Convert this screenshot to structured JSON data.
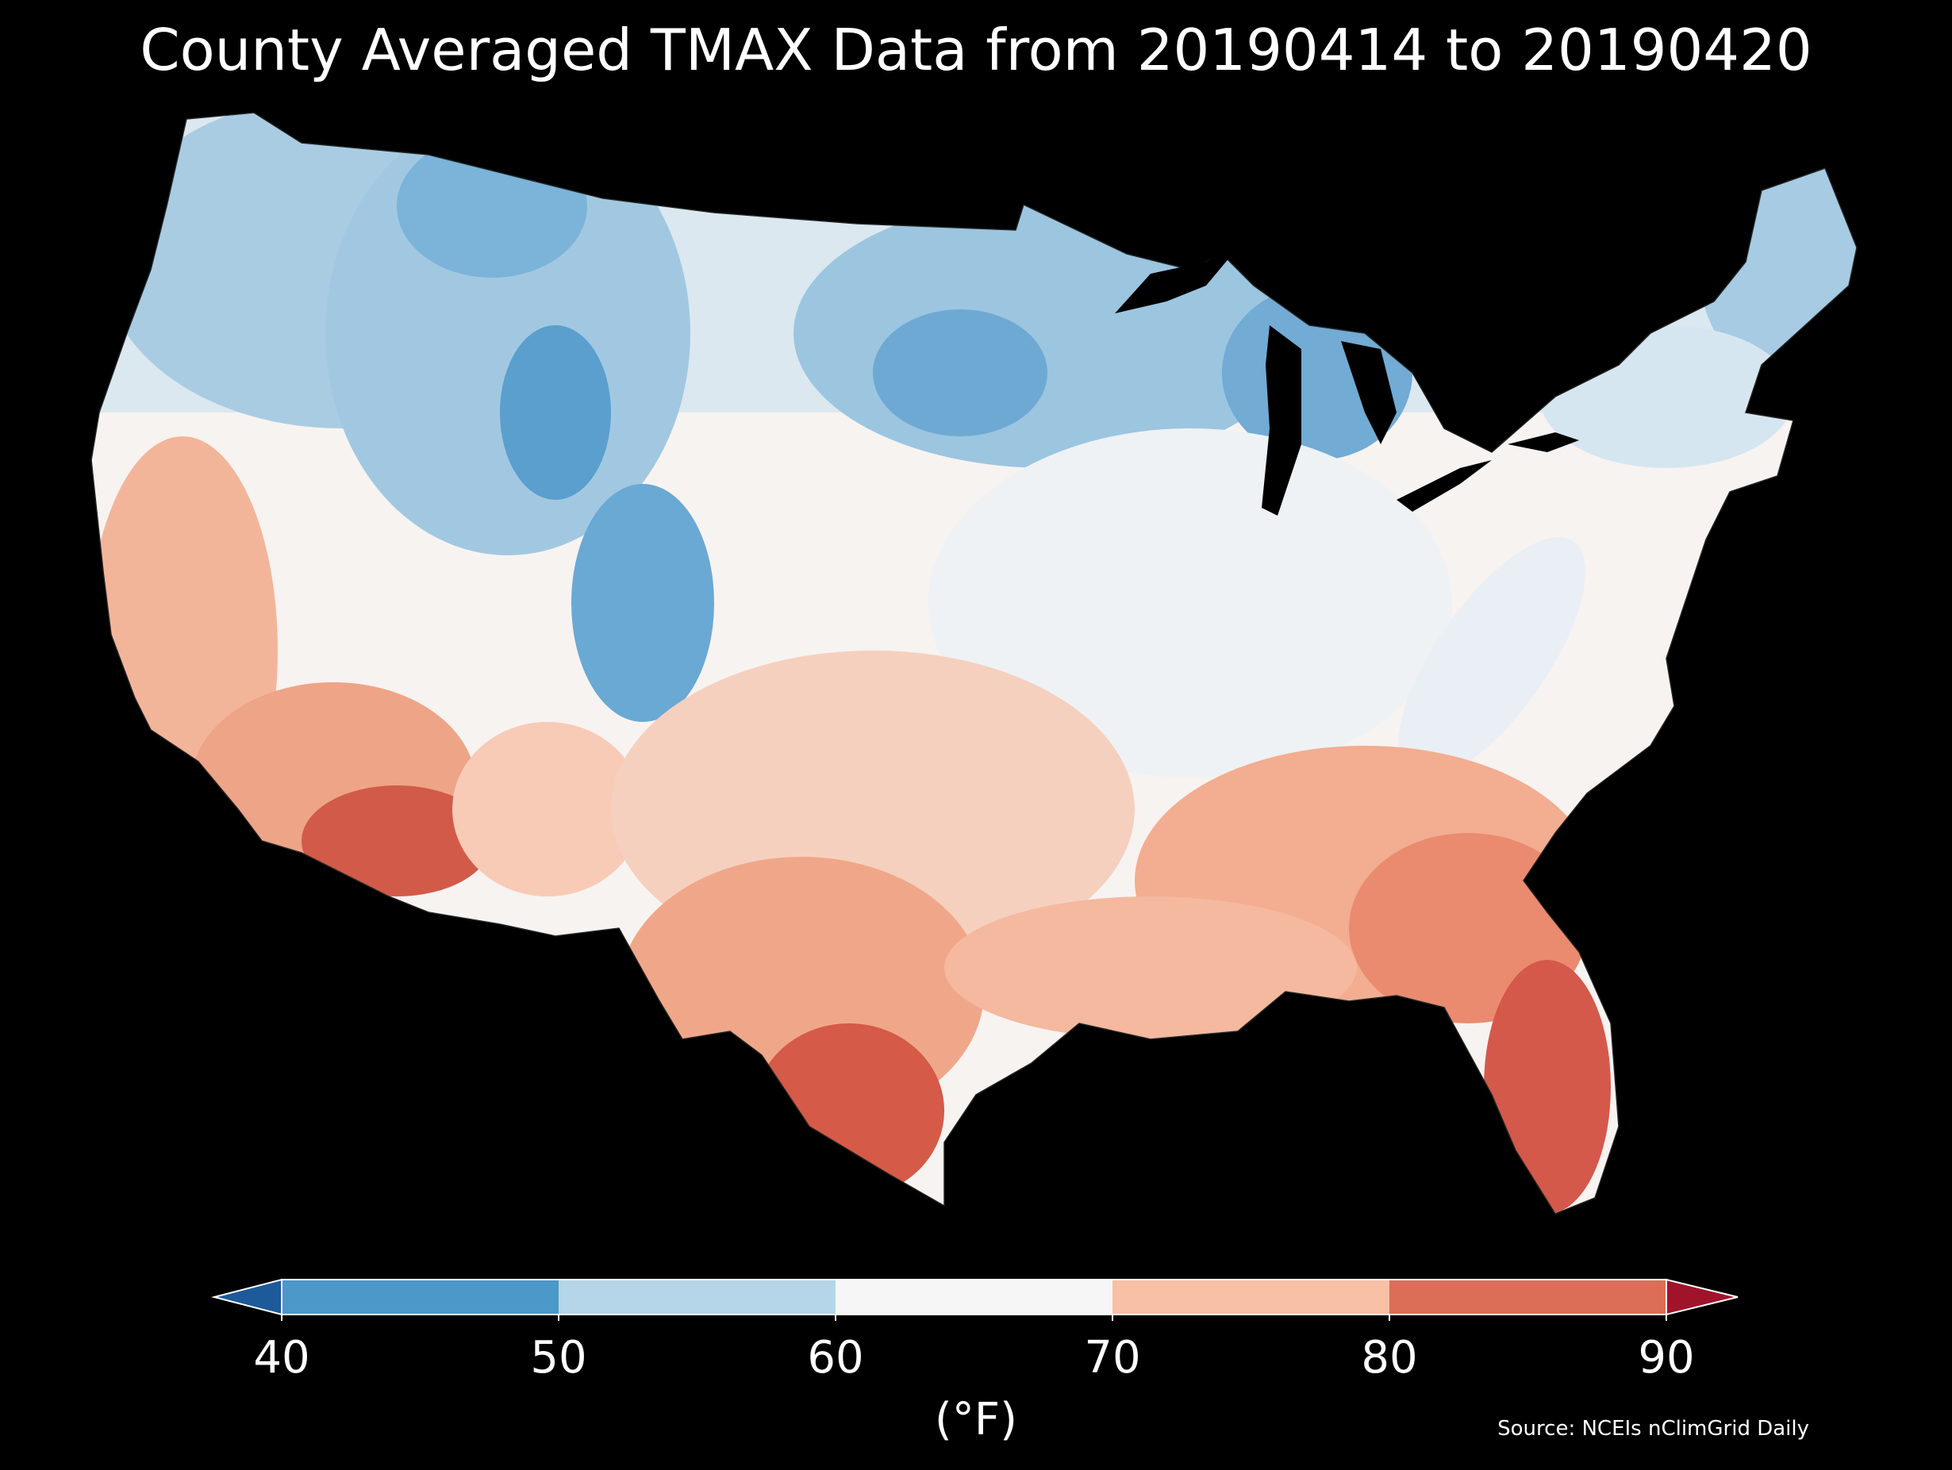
{
  "title": "County Averaged TMAX Data from 20190414 to 20190420",
  "colorbar": {
    "unit": "(°F)",
    "ticks": [
      "40",
      "50",
      "60",
      "70",
      "80",
      "90"
    ],
    "bins": [
      {
        "range": [
          40,
          50
        ],
        "color": "#4b98c9"
      },
      {
        "range": [
          50,
          60
        ],
        "color": "#b5d6e8"
      },
      {
        "range": [
          60,
          70
        ],
        "color": "#f6f6f6"
      },
      {
        "range": [
          70,
          80
        ],
        "color": "#f8c0a4"
      },
      {
        "range": [
          80,
          90
        ],
        "color": "#dc6d57"
      }
    ],
    "under_color": "#1c5a9a",
    "over_color": "#a0142b"
  },
  "source": "Source: NCEIs nClimGrid Daily"
}
